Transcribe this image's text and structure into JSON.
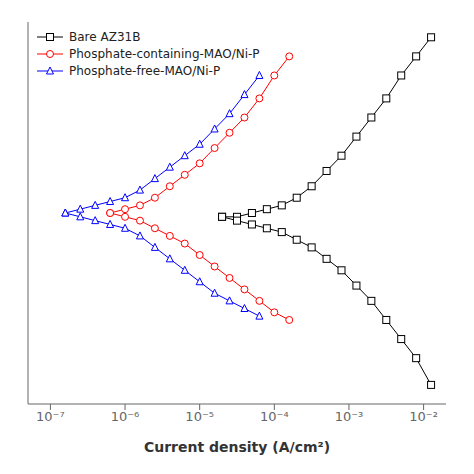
{
  "chart_data": {
    "type": "line",
    "title": "",
    "xlabel": "Current density (A/cm²)",
    "log": "x",
    "grid": false,
    "legend": "upper left",
    "tick_labels": "x",
    "xlim": [
      5.011872336272722e-08,
      0.019952623149688795
    ],
    "xticks": [
      {
        "value": 1e-07,
        "label": "10⁻⁷"
      },
      {
        "value": 1e-06,
        "label": "10⁻⁶"
      },
      {
        "value": 1e-05,
        "label": "10⁻⁵"
      },
      {
        "value": 0.0001,
        "label": "10⁻⁴"
      },
      {
        "value": 0.001,
        "label": "10⁻³"
      },
      {
        "value": 0.01,
        "label": "10⁻²"
      }
    ],
    "ylim": [
      0.0,
      1.0
    ],
    "series": [
      {
        "name": "Bare AZ31B",
        "color": "black",
        "marker": "square",
        "line_style": "solid",
        "x": [
          1.9952623149688796e-05,
          3.1622776601683795e-05,
          5.011872336272722e-05,
          7.943282347242815e-05,
          0.00012589254117941672,
          0.00019952623149688796,
          0.00031622776601683794,
          0.0005011872336272722,
          0.0007943282347242815,
          0.0012589254117941673,
          0.0019952623149688794,
          0.0031622776601683794,
          0.005011872336272722,
          0.007943282347242816,
          0.012589254117941673,
          null,
          1.9952623149688796e-05,
          3.1622776601683795e-05,
          5.011872336272722e-05,
          7.943282347242815e-05,
          0.00012589254117941672,
          0.00019952623149688796,
          0.00031622776601683794,
          0.0005011872336272722,
          0.0007943282347242815,
          0.0012589254117941673,
          0.0019952623149688794,
          0.0031622776601683794,
          0.005011872336272722,
          0.007943282347242816,
          0.012589254117941673
        ],
        "values": [
          0.49,
          0.49,
          0.5,
          0.51,
          0.52,
          0.54,
          0.57,
          0.61,
          0.65,
          0.7,
          0.75,
          0.8,
          0.86,
          0.91,
          0.96,
          null,
          0.49,
          0.48,
          0.47,
          0.46,
          0.45,
          0.43,
          0.41,
          0.38,
          0.35,
          0.31,
          0.27,
          0.22,
          0.17,
          0.12,
          0.05
        ]
      },
      {
        "name": "Phosphate-containing-MAO/Ni-P",
        "color": "red",
        "marker": "circle",
        "line_style": "solid",
        "x": [
          6.309573444801933e-07,
          1e-06,
          1.5848931924611137e-06,
          2.51188643150958e-06,
          3.9810717055349725e-06,
          6.309573444801933e-06,
          1e-05,
          1.5848931924611134e-05,
          2.51188643150958e-05,
          3.981071705534972e-05,
          6.309573444801933e-05,
          0.0001,
          0.00015848931924611136,
          null,
          6.309573444801933e-07,
          1e-06,
          1.5848931924611137e-06,
          2.51188643150958e-06,
          3.9810717055349725e-06,
          6.309573444801933e-06,
          1e-05,
          1.5848931924611134e-05,
          2.51188643150958e-05,
          3.981071705534972e-05,
          6.309573444801933e-05,
          0.0001,
          0.00015848931924611136
        ],
        "values": [
          0.5,
          0.51,
          0.52,
          0.54,
          0.57,
          0.6,
          0.63,
          0.67,
          0.71,
          0.75,
          0.8,
          0.86,
          0.91,
          null,
          0.5,
          0.49,
          0.48,
          0.46,
          0.44,
          0.42,
          0.39,
          0.36,
          0.33,
          0.3,
          0.27,
          0.24,
          0.22
        ]
      },
      {
        "name": "Phosphate-free-MAO/Ni-P",
        "color": "blue",
        "marker": "triangle",
        "line_style": "solid",
        "x": [
          1.5848931924611136e-07,
          2.51188643150958e-07,
          3.9810717055349724e-07,
          6.309573444801933e-07,
          1e-06,
          1.5848931924611137e-06,
          2.51188643150958e-06,
          3.9810717055349725e-06,
          6.309573444801933e-06,
          1e-05,
          1.5848931924611134e-05,
          2.51188643150958e-05,
          3.981071705534972e-05,
          6.309573444801933e-05,
          null,
          1.5848931924611136e-07,
          2.51188643150958e-07,
          3.9810717055349724e-07,
          6.309573444801933e-07,
          1e-06,
          1.5848931924611137e-06,
          2.51188643150958e-06,
          3.9810717055349725e-06,
          6.309573444801933e-06,
          1e-05,
          1.5848931924611134e-05,
          2.51188643150958e-05,
          3.981071705534972e-05,
          6.309573444801933e-05
        ],
        "values": [
          0.5,
          0.51,
          0.52,
          0.53,
          0.54,
          0.56,
          0.59,
          0.62,
          0.65,
          0.68,
          0.72,
          0.76,
          0.81,
          0.86,
          null,
          0.5,
          0.49,
          0.48,
          0.47,
          0.46,
          0.44,
          0.41,
          0.38,
          0.35,
          0.32,
          0.29,
          0.27,
          0.25,
          0.23
        ]
      }
    ]
  }
}
